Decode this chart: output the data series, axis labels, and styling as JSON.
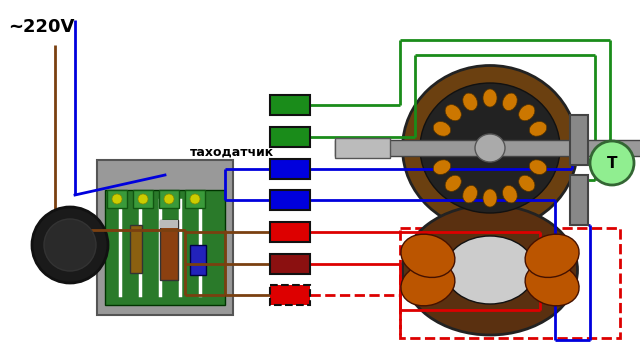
{
  "title": "~220V",
  "tachometer_label": "таходатчик",
  "bg_color": "#ffffff",
  "green": "#1a8c1a",
  "blue": "#0000dd",
  "red": "#dd0000",
  "darkred": "#8B1010",
  "brown": "#7a4010",
  "grey": "#888888",
  "T_color": "#90ee90",
  "T_label": "T"
}
